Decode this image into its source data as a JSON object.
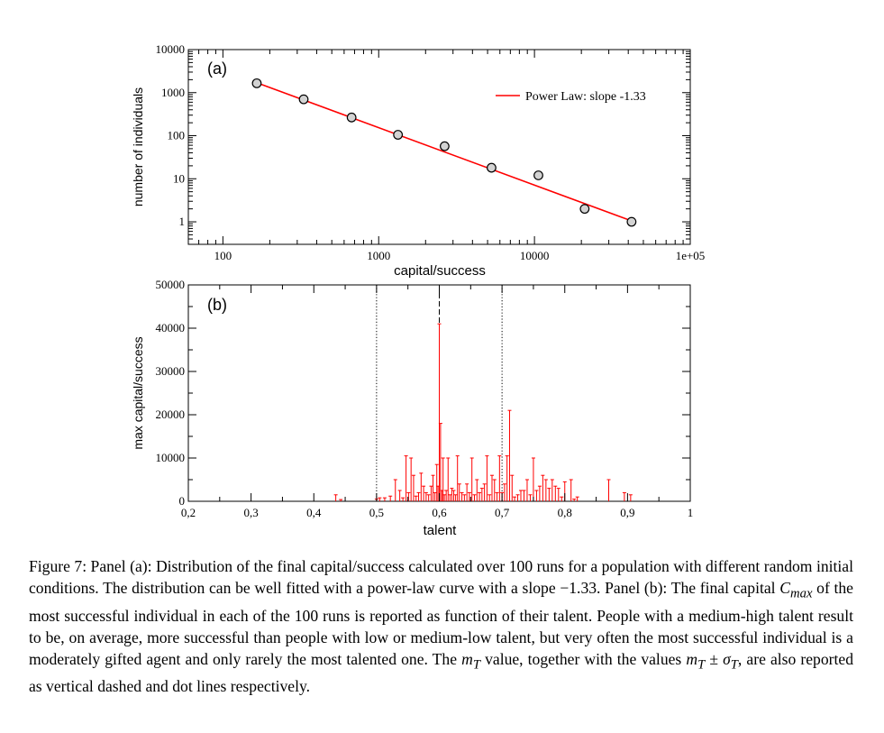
{
  "colors": {
    "series": "#ff0000",
    "axis": "#000000",
    "marker_fill": "#d3d3d3"
  },
  "chart_data": [
    {
      "type": "scatter",
      "panel_label": "(a)",
      "xlabel": "capital/success",
      "ylabel": "number of individuals",
      "x_scale": "log",
      "y_scale": "log",
      "xlim": [
        60,
        100000
      ],
      "ylim": [
        0.3,
        10000
      ],
      "x_ticks": [
        100,
        1000,
        10000,
        100000
      ],
      "x_tick_labels": [
        "100",
        "1000",
        "10000",
        "1e+05"
      ],
      "y_ticks": [
        1,
        10,
        100,
        1000,
        10000
      ],
      "y_tick_labels": [
        "1",
        "10",
        "100",
        "1000",
        "10000"
      ],
      "points": [
        {
          "x": 165,
          "y": 1650
        },
        {
          "x": 330,
          "y": 700
        },
        {
          "x": 670,
          "y": 265
        },
        {
          "x": 1330,
          "y": 105
        },
        {
          "x": 2650,
          "y": 57
        },
        {
          "x": 5300,
          "y": 18
        },
        {
          "x": 10600,
          "y": 12
        },
        {
          "x": 21000,
          "y": 2
        },
        {
          "x": 42000,
          "y": 1
        }
      ],
      "fit_line": {
        "name": "Power Law: slope -1.33",
        "x": [
          165,
          42000
        ],
        "y": [
          1700,
          1.05
        ]
      },
      "legend": {
        "label": "Power Law: slope -1.33",
        "position": "top-right"
      }
    },
    {
      "type": "bar",
      "panel_label": "(b)",
      "xlabel": "talent",
      "ylabel": "max capital/success",
      "xlim": [
        0.2,
        1.0
      ],
      "ylim": [
        0,
        50000
      ],
      "x_ticks": [
        0.2,
        0.3,
        0.4,
        0.5,
        0.6,
        0.7,
        0.8,
        0.9,
        1.0
      ],
      "x_tick_labels": [
        "0,2",
        "0,3",
        "0,4",
        "0,5",
        "0,6",
        "0,7",
        "0,8",
        "0,9",
        "1"
      ],
      "y_ticks": [
        0,
        10000,
        20000,
        30000,
        40000,
        50000
      ],
      "y_tick_labels": [
        "0",
        "10000",
        "20000",
        "30000",
        "40000",
        "50000"
      ],
      "vertical_lines": [
        {
          "x": 0.5,
          "style": "dotted"
        },
        {
          "x": 0.6,
          "style": "dashed"
        },
        {
          "x": 0.7,
          "style": "dotted"
        }
      ],
      "x": [
        0.435,
        0.443,
        0.5,
        0.505,
        0.513,
        0.522,
        0.53,
        0.537,
        0.542,
        0.547,
        0.551,
        0.555,
        0.559,
        0.563,
        0.567,
        0.571,
        0.575,
        0.579,
        0.583,
        0.587,
        0.59,
        0.593,
        0.596,
        0.598,
        0.6,
        0.602,
        0.604,
        0.606,
        0.608,
        0.611,
        0.614,
        0.617,
        0.62,
        0.623,
        0.626,
        0.629,
        0.632,
        0.636,
        0.64,
        0.644,
        0.648,
        0.652,
        0.656,
        0.66,
        0.664,
        0.668,
        0.672,
        0.676,
        0.68,
        0.684,
        0.688,
        0.692,
        0.696,
        0.7,
        0.704,
        0.708,
        0.712,
        0.716,
        0.72,
        0.725,
        0.73,
        0.735,
        0.74,
        0.745,
        0.75,
        0.755,
        0.76,
        0.765,
        0.77,
        0.775,
        0.78,
        0.785,
        0.79,
        0.795,
        0.8,
        0.81,
        0.815,
        0.82,
        0.87,
        0.895,
        0.905
      ],
      "values": [
        1500,
        400,
        500,
        800,
        800,
        1200,
        5000,
        2500,
        800,
        10500,
        2000,
        10000,
        6000,
        1200,
        2000,
        6500,
        3500,
        2000,
        1500,
        3500,
        6000,
        2000,
        8500,
        3500,
        41000,
        18000,
        2500,
        10000,
        1500,
        2500,
        10000,
        1500,
        3000,
        2500,
        1500,
        10500,
        4000,
        2000,
        1500,
        4000,
        2000,
        10000,
        1500,
        5000,
        2000,
        3000,
        4000,
        10500,
        1500,
        6000,
        5000,
        2000,
        10500,
        2000,
        4000,
        10500,
        21000,
        6000,
        1000,
        1500,
        2500,
        2500,
        5000,
        1500,
        10000,
        2500,
        3500,
        6000,
        5000,
        3000,
        5000,
        3500,
        3000,
        1000,
        4500,
        5000,
        500,
        1000,
        5000,
        2000,
        1500
      ]
    }
  ],
  "caption": {
    "p1": "Figure 7: Panel (a): Distribution of the final capital/success calculated over 100 runs for a population with different random initial conditions. The distribution can be well fitted with a power-law curve with a slope −1.33. Panel (b): The final capital ",
    "cmax_base": "C",
    "cmax_sub": "max",
    "p2": " of the most successful individual in each of the 100 runs is reported as function of their talent. People with a medium-high talent result to be, on average, more successful than people with low or medium-low talent, but very often the most successful individual is a moderately gifted agent and only rarely the most talented one. The ",
    "mt_base": "m",
    "mt_sub": "T",
    "p3": " value, together with the values ",
    "pm_expr": "m",
    "pm_sub1": "T",
    "pm_op": " ± ",
    "sigma": "σ",
    "pm_sub2": "T",
    "p4": ", are also reported as vertical dashed and dot lines respectively."
  }
}
